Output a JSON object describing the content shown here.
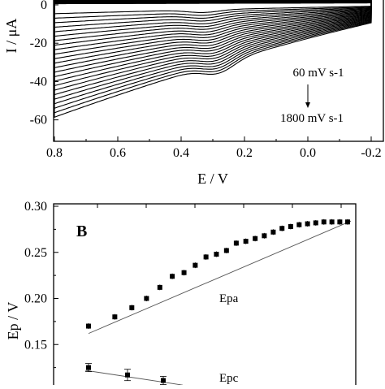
{
  "chart_data": [
    {
      "type": "line",
      "panel": "A",
      "xlabel": "E / V",
      "ylabel": "I / μA",
      "xlim": [
        0.8,
        -0.2
      ],
      "ylim": [
        -66,
        0
      ],
      "x_reversed": true,
      "x_ticks": [
        "0.8",
        "0.6",
        "0.4",
        "0.2",
        "0.0",
        "-0.2"
      ],
      "y_ticks": [
        "0",
        "-20",
        "-40",
        "-60"
      ],
      "annotations": {
        "scan_rate_low": "60 mV s-1",
        "scan_rate_high": "1800 mV s-1"
      },
      "series_description": "cyclic voltammograms at increasing scan rates",
      "scan_count": 24,
      "cathodic_peak_potential": [
        0.33,
        0.28
      ],
      "cathodic_peak_current": [
        -5,
        -52
      ],
      "lower_branch_current_at_0_8": [
        -4,
        -52
      ],
      "upper_branch_current": [
        1,
        5
      ]
    },
    {
      "type": "scatter",
      "panel": "B",
      "panel_label": "B",
      "xlabel": "",
      "ylabel": "Ep / V",
      "ylim": [
        0.11,
        0.3
      ],
      "y_ticks": [
        "0.30",
        "0.25",
        "0.20",
        "0.15"
      ],
      "series": [
        {
          "name": "Epa",
          "x": [
            1,
            2,
            3,
            4,
            5,
            6,
            7,
            8,
            9,
            10,
            11,
            12,
            13,
            14,
            15,
            16,
            17,
            18,
            19,
            20,
            21,
            22,
            23,
            24,
            25
          ],
          "values": [
            0.17,
            0.18,
            0.19,
            0.2,
            0.212,
            0.224,
            0.228,
            0.236,
            0.245,
            0.248,
            0.252,
            0.26,
            0.262,
            0.265,
            0.268,
            0.272,
            0.276,
            0.278,
            0.28,
            0.281,
            0.282,
            0.283,
            0.283,
            0.283,
            0.283
          ],
          "fit": [
            0.162,
            0.284
          ]
        },
        {
          "name": "Epc",
          "x": [
            1,
            2,
            3
          ],
          "values": [
            0.125,
            0.117,
            0.111
          ],
          "fit": [
            0.122,
            0.106
          ]
        }
      ],
      "labels": {
        "epa": "Epa",
        "epc": "Epc"
      }
    }
  ]
}
